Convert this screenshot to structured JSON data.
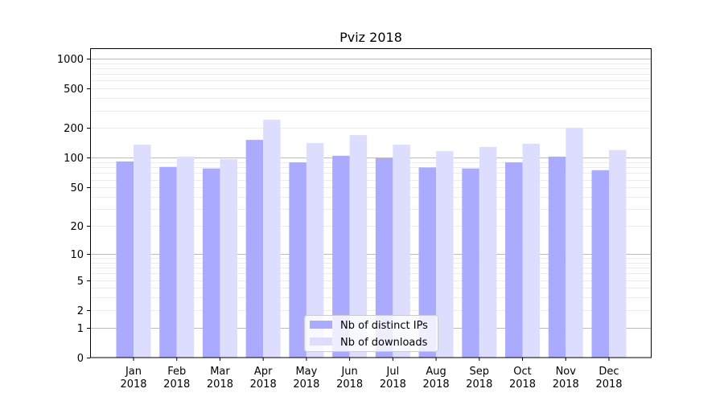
{
  "chart_data": {
    "type": "bar",
    "title": "Pviz 2018",
    "xlabel": "",
    "ylabel": "",
    "yscale": "log10(1+y)",
    "ylim": [
      0,
      1200
    ],
    "grid": true,
    "legend_position": "bottom-center",
    "categories": [
      [
        "Jan",
        "2018"
      ],
      [
        "Feb",
        "2018"
      ],
      [
        "Mar",
        "2018"
      ],
      [
        "Apr",
        "2018"
      ],
      [
        "May",
        "2018"
      ],
      [
        "Jun",
        "2018"
      ],
      [
        "Jul",
        "2018"
      ],
      [
        "Aug",
        "2018"
      ],
      [
        "Sep",
        "2018"
      ],
      [
        "Oct",
        "2018"
      ],
      [
        "Nov",
        "2018"
      ],
      [
        "Dec",
        "2018"
      ]
    ],
    "yticks": [
      0,
      1,
      2,
      5,
      10,
      20,
      50,
      100,
      200,
      500,
      1000
    ],
    "series": [
      {
        "name": "Nb of distinct IPs",
        "color": "#aaaaff",
        "values": [
          92,
          81,
          78,
          152,
          90,
          105,
          99,
          80,
          78,
          90,
          103,
          75
        ]
      },
      {
        "name": "Nb of downloads",
        "color": "#ddddff",
        "values": [
          136,
          103,
          97,
          243,
          141,
          170,
          136,
          117,
          129,
          139,
          201,
          120
        ]
      }
    ]
  }
}
